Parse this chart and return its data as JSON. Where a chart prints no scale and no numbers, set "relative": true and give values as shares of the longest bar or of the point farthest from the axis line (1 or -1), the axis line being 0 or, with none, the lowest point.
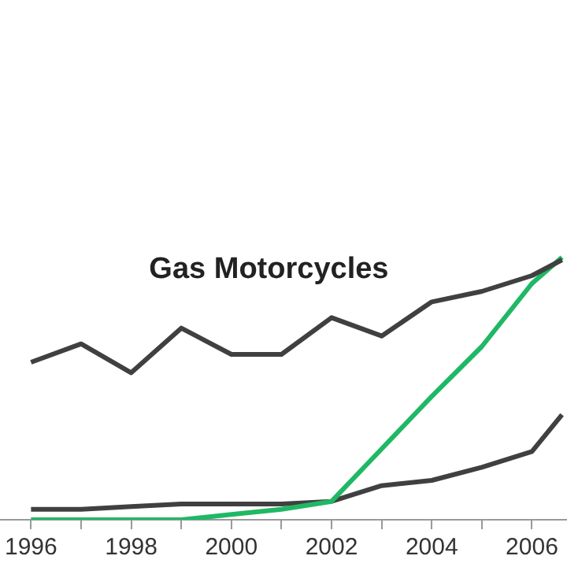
{
  "chart_data": {
    "type": "line",
    "relative": true,
    "x": [
      1996,
      1997,
      1998,
      1999,
      2000,
      2001,
      2002,
      2003,
      2004,
      2005,
      2006,
      2006.6
    ],
    "xlim": [
      1995.4,
      2006.7
    ],
    "xticks": [
      1996,
      {
        "value": 1997,
        "label": null
      },
      1998,
      {
        "value": 1999,
        "label": null
      },
      2000,
      {
        "value": 2001,
        "label": null
      },
      2002,
      {
        "value": 2003,
        "label": null
      },
      2004,
      {
        "value": 2005,
        "label": null
      },
      2006
    ],
    "series": [
      {
        "name": "Gas Motorcycles",
        "color": "#404040",
        "values": [
          0.6,
          0.67,
          0.56,
          0.73,
          0.63,
          0.63,
          0.77,
          0.7,
          0.83,
          0.87,
          0.93,
          0.99
        ]
      },
      {
        "color": "#1fb865",
        "values": [
          0,
          0,
          0,
          0,
          0.02,
          0.04,
          0.07,
          0.27,
          0.47,
          0.66,
          0.9,
          1.0
        ]
      },
      {
        "color": "#404040",
        "values": [
          0.04,
          0.04,
          0.05,
          0.06,
          0.06,
          0.06,
          0.07,
          0.13,
          0.15,
          0.2,
          0.26,
          0.4
        ]
      }
    ],
    "grid": false,
    "legend": false,
    "marker": "none",
    "line_style": "solid",
    "tick_labels": "x"
  }
}
